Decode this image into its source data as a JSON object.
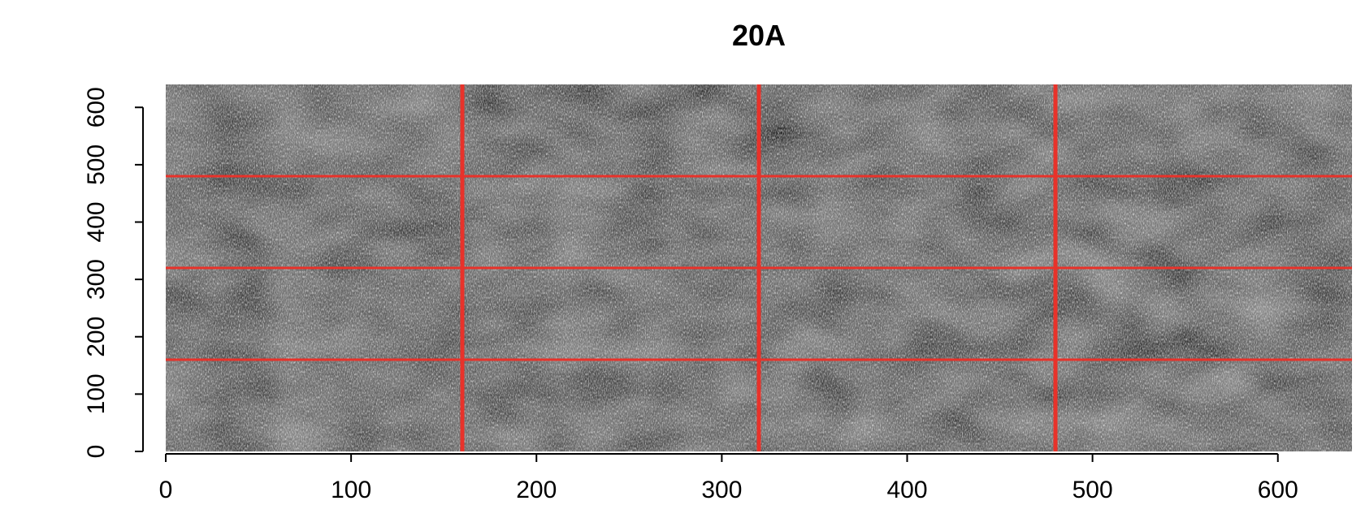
{
  "chart_data": {
    "type": "heatmap",
    "title": "20A",
    "xlabel": "",
    "ylabel": "",
    "xlim": [
      0,
      640
    ],
    "ylim": [
      0,
      640
    ],
    "x_ticks": [
      0,
      100,
      200,
      300,
      400,
      500,
      600
    ],
    "y_ticks": [
      0,
      100,
      200,
      300,
      400,
      500,
      600
    ],
    "x_tick_labels": [
      "0",
      "100",
      "200",
      "300",
      "400",
      "500",
      "600"
    ],
    "y_tick_labels": [
      "0",
      "100",
      "200",
      "300",
      "400",
      "500",
      "600"
    ],
    "image_description": "grayscale speckle texture image",
    "grid_lines": {
      "color": "#e8322a",
      "vertical_x": [
        160,
        320,
        480
      ],
      "horizontal_y": [
        160,
        320,
        480
      ]
    },
    "colors": {
      "background_texture": "#1a1a1a",
      "speckle": "#9a9a9a"
    }
  }
}
